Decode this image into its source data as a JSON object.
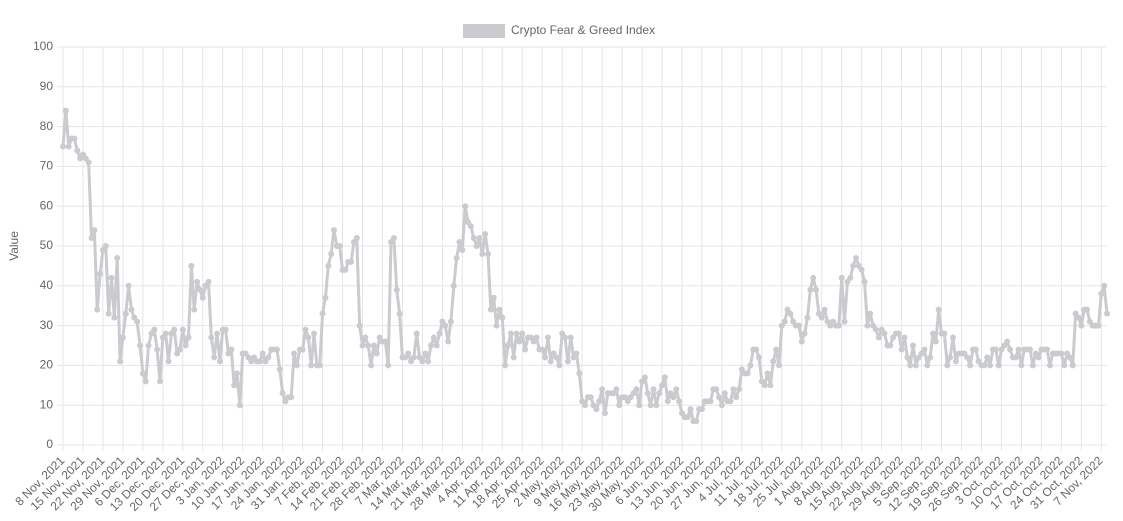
{
  "chart_data": {
    "type": "line",
    "legend": "top",
    "y_label": "Value",
    "ylim": [
      0,
      100
    ],
    "yticks": [
      0,
      10,
      20,
      30,
      40,
      50,
      60,
      70,
      80,
      90,
      100
    ],
    "grid": true,
    "categories": [
      "8 Nov, 2021",
      null,
      null,
      null,
      null,
      null,
      null,
      "15 Nov, 2021",
      null,
      null,
      null,
      null,
      null,
      null,
      "22 Nov, 2021",
      null,
      null,
      null,
      null,
      null,
      null,
      "29 Nov, 2021",
      null,
      null,
      null,
      null,
      null,
      null,
      "6 Dec, 2021",
      null,
      null,
      null,
      null,
      null,
      null,
      "13 Dec, 2021",
      null,
      null,
      null,
      null,
      null,
      null,
      "20 Dec, 2021",
      null,
      null,
      null,
      null,
      null,
      null,
      "27 Dec, 2021",
      null,
      null,
      null,
      null,
      null,
      null,
      "3 Jan, 2022",
      null,
      null,
      null,
      null,
      null,
      null,
      "10 Jan, 2022",
      null,
      null,
      null,
      null,
      null,
      null,
      "17 Jan, 2022",
      null,
      null,
      null,
      null,
      null,
      null,
      "24 Jan, 2022",
      null,
      null,
      null,
      null,
      null,
      null,
      "31 Jan, 2022",
      null,
      null,
      null,
      null,
      null,
      null,
      "7 Feb, 2022",
      null,
      null,
      null,
      null,
      null,
      null,
      "14 Feb, 2022",
      null,
      null,
      null,
      null,
      null,
      null,
      "21 Feb, 2022",
      null,
      null,
      null,
      null,
      null,
      null,
      "28 Feb, 2022",
      null,
      null,
      null,
      null,
      null,
      null,
      "7 Mar, 2022",
      null,
      null,
      null,
      null,
      null,
      null,
      "14 Mar, 2022",
      null,
      null,
      null,
      null,
      null,
      null,
      "21 Mar, 2022",
      null,
      null,
      null,
      null,
      null,
      null,
      "28 Mar, 2022",
      null,
      null,
      null,
      null,
      null,
      null,
      "4 Apr, 2022",
      null,
      null,
      null,
      null,
      null,
      null,
      "11 Apr, 2022",
      null,
      null,
      null,
      null,
      null,
      null,
      "18 Apr, 2022",
      null,
      null,
      null,
      null,
      null,
      null,
      "25 Apr, 2022",
      null,
      null,
      null,
      null,
      null,
      null,
      "2 May, 2022",
      null,
      null,
      null,
      null,
      null,
      null,
      "9 May, 2022",
      null,
      null,
      null,
      null,
      null,
      null,
      "16 May, 2022",
      null,
      null,
      null,
      null,
      null,
      null,
      "23 May, 2022",
      null,
      null,
      null,
      null,
      null,
      null,
      "30 May, 2022",
      null,
      null,
      null,
      null,
      null,
      null,
      "6 Jun, 2022",
      null,
      null,
      null,
      null,
      null,
      null,
      "13 Jun, 2022",
      null,
      null,
      null,
      null,
      null,
      null,
      "20 Jun, 2022",
      null,
      null,
      null,
      null,
      null,
      null,
      "27 Jun, 2022",
      null,
      null,
      null,
      null,
      null,
      null,
      "4 Jul, 2022",
      null,
      null,
      null,
      null,
      null,
      null,
      "11 Jul, 2022",
      null,
      null,
      null,
      null,
      null,
      null,
      "18 Jul, 2022",
      null,
      null,
      null,
      null,
      null,
      null,
      "25 Jul, 2022",
      null,
      null,
      null,
      null,
      null,
      null,
      "1 Aug, 2022",
      null,
      null,
      null,
      null,
      null,
      null,
      "8 Aug, 2022",
      null,
      null,
      null,
      null,
      null,
      null,
      "15 Aug, 2022",
      null,
      null,
      null,
      null,
      null,
      null,
      "22 Aug, 2022",
      null,
      null,
      null,
      null,
      null,
      null,
      "29 Aug, 2022",
      null,
      null,
      null,
      null,
      null,
      null,
      "5 Sep, 2022",
      null,
      null,
      null,
      null,
      null,
      null,
      "12 Sep, 2022",
      null,
      null,
      null,
      null,
      null,
      null,
      "19 Sep, 2022",
      null,
      null,
      null,
      null,
      null,
      null,
      "26 Sep, 2022",
      null,
      null,
      null,
      null,
      null,
      null,
      "3 Oct, 2022",
      null,
      null,
      null,
      null,
      null,
      null,
      "10 Oct, 2022",
      null,
      null,
      null,
      null,
      null,
      null,
      "17 Oct, 2022",
      null,
      null,
      null,
      null,
      null,
      null,
      "24 Oct, 2022",
      null,
      null,
      null,
      null,
      null,
      null,
      "31 Oct, 2022",
      null,
      null,
      null,
      null,
      null,
      null,
      "7 Nov, 2022",
      null,
      null
    ],
    "series": [
      {
        "name": "Crypto Fear & Greed Index",
        "color": "#c9cbcf",
        "values": [
          75,
          84,
          75,
          77,
          77,
          74,
          72,
          73,
          72,
          71,
          52,
          54,
          34,
          43,
          49,
          50,
          33,
          42,
          32,
          47,
          21,
          27,
          33,
          40,
          34,
          32,
          31,
          25,
          18,
          16,
          25,
          28,
          29,
          24,
          16,
          27,
          28,
          21,
          28,
          29,
          23,
          24,
          29,
          25,
          27,
          45,
          34,
          41,
          39,
          37,
          40,
          41,
          27,
          22,
          28,
          21,
          29,
          29,
          23,
          24,
          15,
          18,
          10,
          23,
          23,
          22,
          21,
          22,
          21,
          21,
          23,
          21,
          22,
          24,
          24,
          24,
          19,
          13,
          11,
          12,
          12,
          23,
          20,
          24,
          24,
          29,
          27,
          20,
          28,
          20,
          20,
          33,
          37,
          45,
          48,
          54,
          50,
          50,
          44,
          44,
          46,
          46,
          51,
          52,
          30,
          25,
          27,
          25,
          20,
          25,
          23,
          27,
          26,
          26,
          20,
          51,
          52,
          39,
          33,
          22,
          22,
          23,
          21,
          22,
          28,
          22,
          21,
          23,
          21,
          25,
          27,
          25,
          28,
          31,
          30,
          26,
          31,
          40,
          47,
          51,
          49,
          60,
          56,
          55,
          52,
          50,
          52,
          48,
          53,
          48,
          34,
          37,
          30,
          34,
          32,
          20,
          25,
          28,
          22,
          28,
          26,
          28,
          24,
          27,
          27,
          26,
          27,
          24,
          24,
          22,
          27,
          21,
          23,
          22,
          20,
          28,
          27,
          21,
          27,
          22,
          23,
          18,
          11,
          10,
          12,
          12,
          10,
          9,
          11,
          14,
          8,
          13,
          13,
          13,
          14,
          10,
          12,
          12,
          11,
          12,
          13,
          14,
          10,
          16,
          17,
          13,
          10,
          14,
          10,
          13,
          15,
          17,
          11,
          13,
          12,
          14,
          11,
          8,
          7,
          7,
          9,
          6,
          6,
          9,
          9,
          11,
          11,
          11,
          14,
          14,
          12,
          10,
          13,
          11,
          11,
          14,
          12,
          14,
          19,
          18,
          18,
          20,
          24,
          24,
          22,
          16,
          15,
          18,
          15,
          21,
          24,
          20,
          30,
          31,
          34,
          33,
          31,
          30,
          30,
          26,
          28,
          32,
          39,
          42,
          39,
          33,
          32,
          34,
          31,
          30,
          31,
          30,
          30,
          42,
          31,
          41,
          42,
          45,
          47,
          45,
          44,
          41,
          30,
          33,
          30,
          29,
          27,
          29,
          28,
          25,
          25,
          27,
          28,
          28,
          24,
          27,
          22,
          20,
          25,
          20,
          22,
          23,
          24,
          20,
          22,
          28,
          26,
          34,
          28,
          28,
          20,
          22,
          27,
          21,
          23,
          23,
          23,
          22,
          20,
          24,
          24,
          21,
          20,
          20,
          22,
          20,
          24,
          24,
          20,
          24,
          25,
          26,
          24,
          22,
          22,
          24,
          20,
          24,
          24,
          24,
          20,
          23,
          22,
          24,
          24,
          24,
          20,
          23,
          23,
          23,
          23,
          20,
          23,
          22,
          20,
          33,
          32,
          30,
          34,
          34,
          31,
          30,
          30,
          30,
          38,
          40,
          33
        ]
      }
    ]
  }
}
